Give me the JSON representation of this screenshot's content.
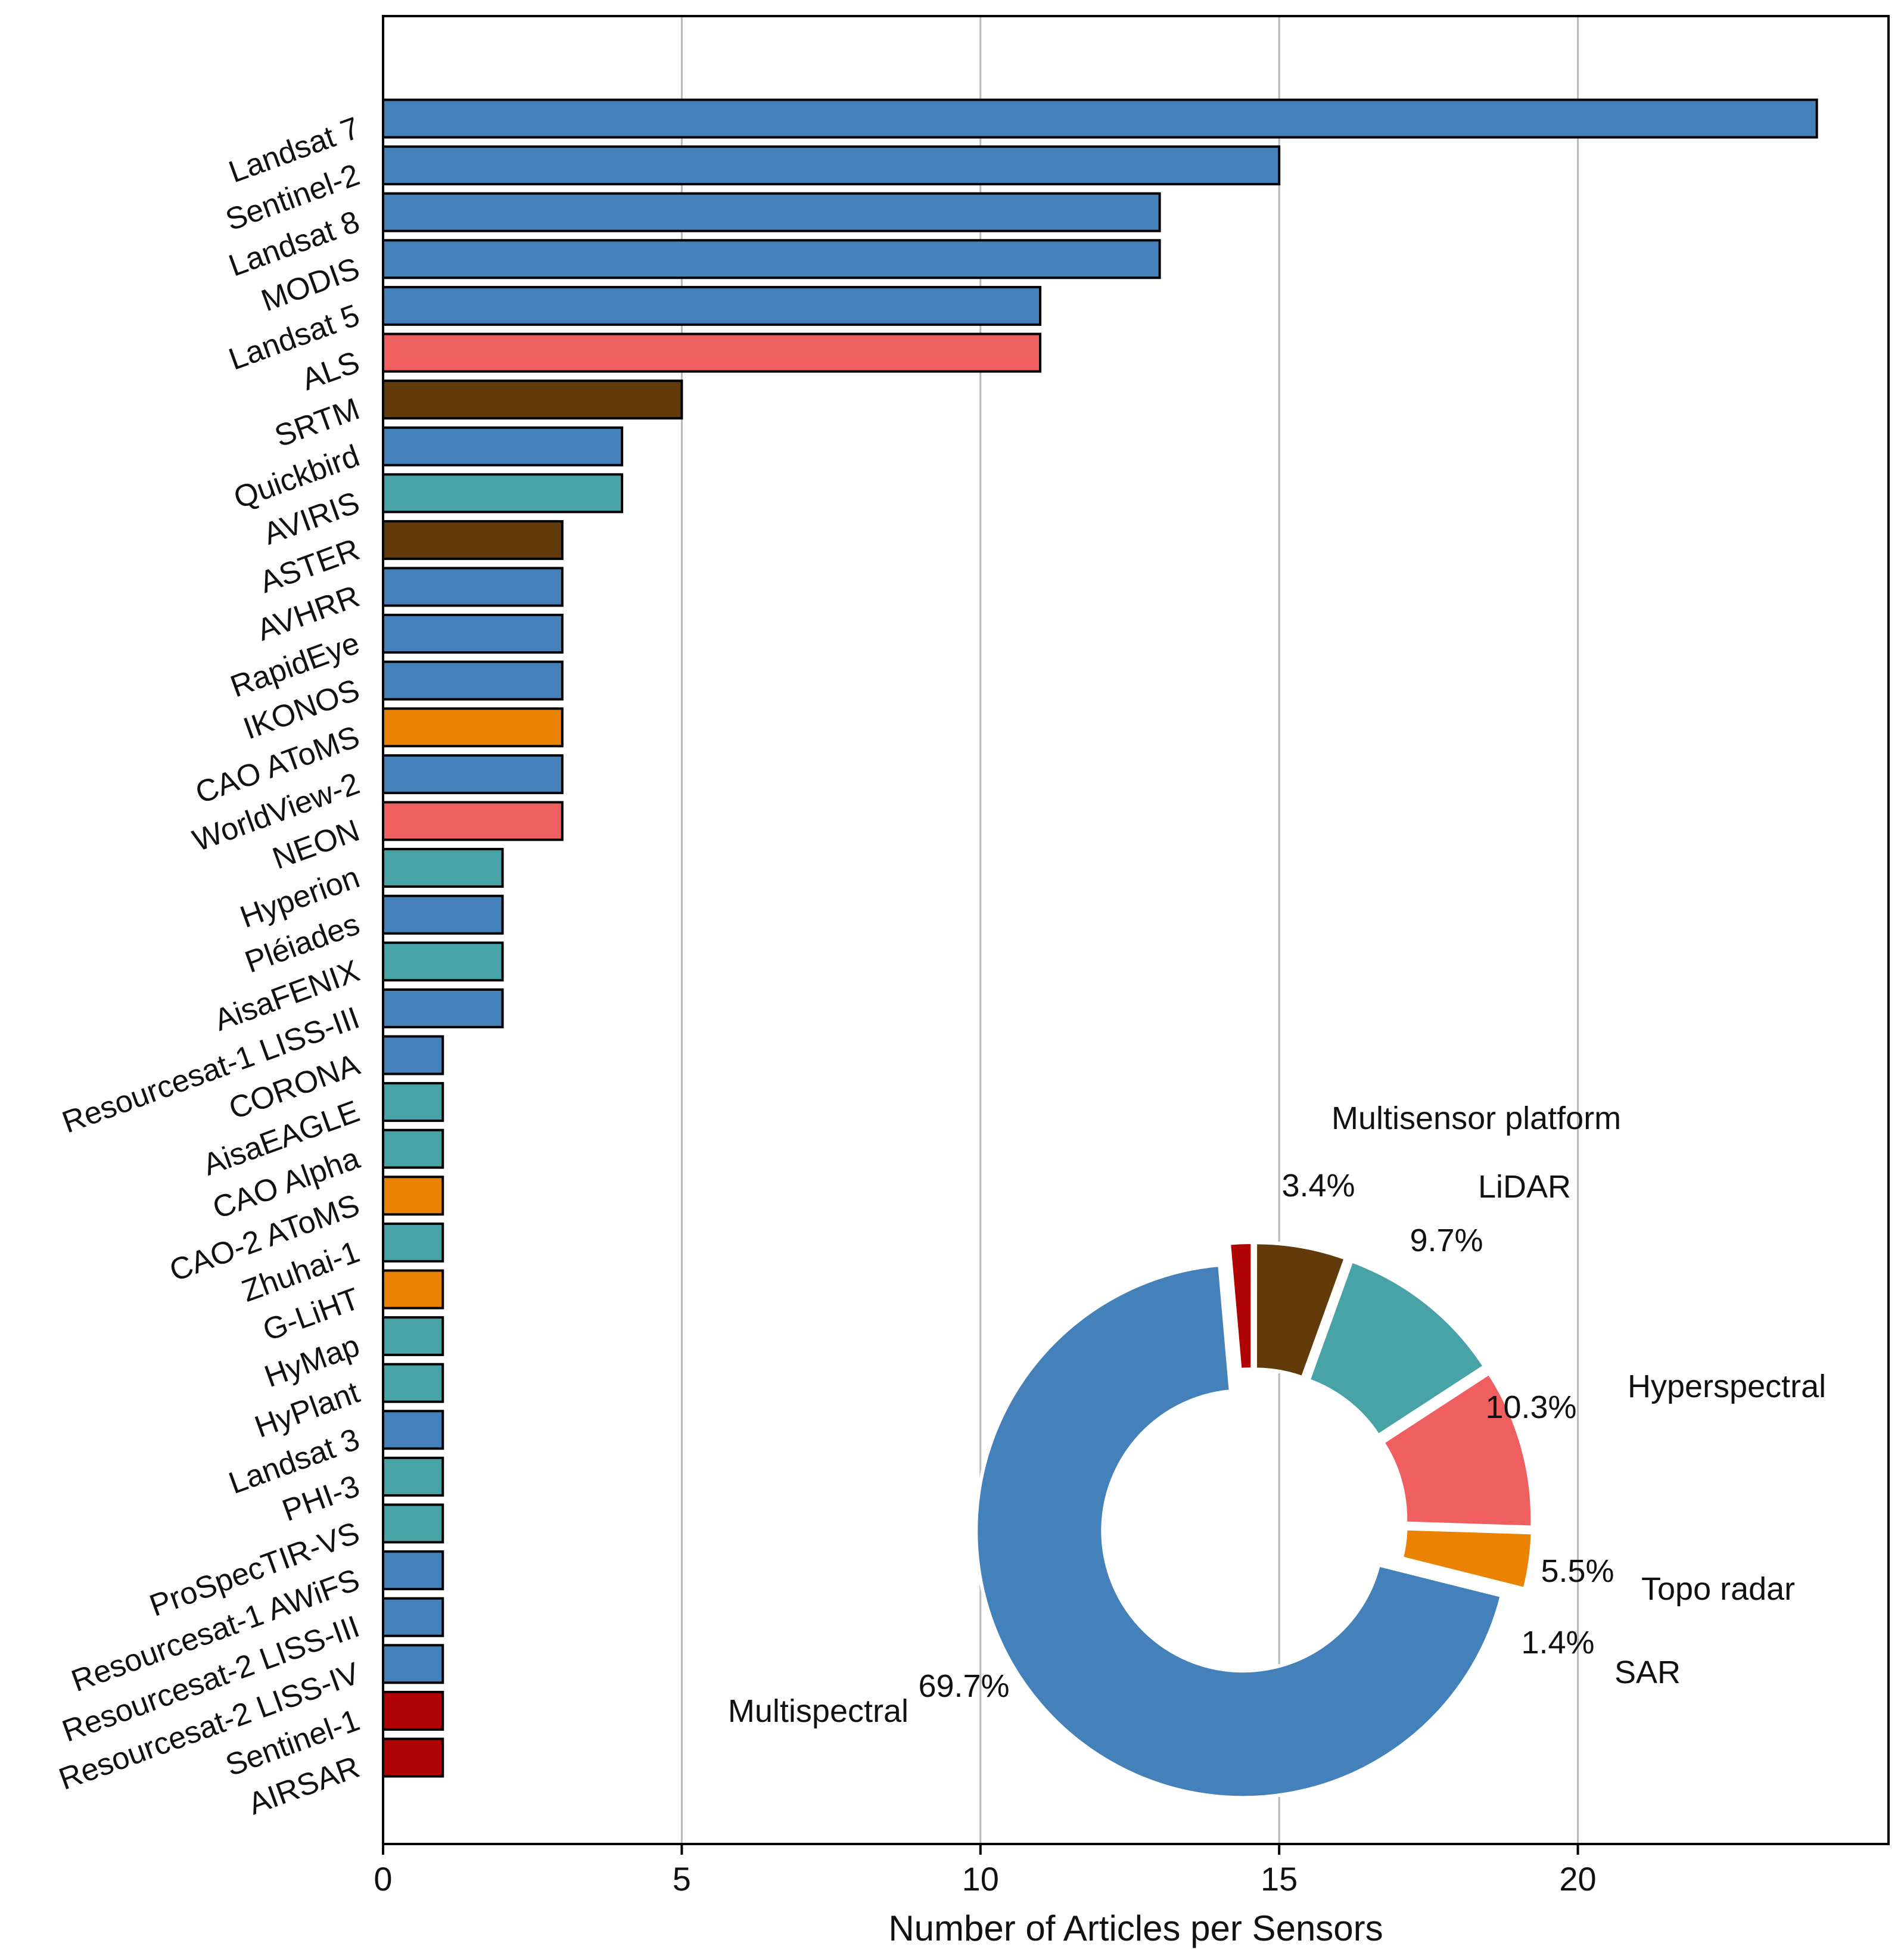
{
  "chart_data": [
    {
      "type": "bar",
      "orientation": "horizontal",
      "title": "",
      "xlabel": "Number of Articles per Sensors",
      "ylabel": "",
      "xlim": [
        0,
        25.2
      ],
      "xticks": [
        0,
        5,
        10,
        15,
        20
      ],
      "grid": "vertical",
      "sensor_type_colors": {
        "Multispectral": "#4480BA",
        "LiDAR": "#EF5F5F",
        "Topo radar": "#633A09",
        "Hyperspectral": "#47A3A5",
        "Multisensor platform": "#EB8302",
        "SAR": "#B00404"
      },
      "bars": [
        {
          "label": "Landsat 7",
          "value": 24,
          "type": "Multispectral"
        },
        {
          "label": "Sentinel-2",
          "value": 15,
          "type": "Multispectral"
        },
        {
          "label": "Landsat 8",
          "value": 13,
          "type": "Multispectral"
        },
        {
          "label": "MODIS",
          "value": 13,
          "type": "Multispectral"
        },
        {
          "label": "Landsat 5",
          "value": 11,
          "type": "Multispectral"
        },
        {
          "label": "ALS",
          "value": 11,
          "type": "LiDAR"
        },
        {
          "label": "SRTM",
          "value": 5,
          "type": "Topo radar"
        },
        {
          "label": "Quickbird",
          "value": 4,
          "type": "Multispectral"
        },
        {
          "label": "AVIRIS",
          "value": 4,
          "type": "Hyperspectral"
        },
        {
          "label": "ASTER",
          "value": 3,
          "type": "Topo radar"
        },
        {
          "label": "AVHRR",
          "value": 3,
          "type": "Multispectral"
        },
        {
          "label": "RapidEye",
          "value": 3,
          "type": "Multispectral"
        },
        {
          "label": "IKONOS",
          "value": 3,
          "type": "Multispectral"
        },
        {
          "label": "CAO AToMS",
          "value": 3,
          "type": "Multisensor platform"
        },
        {
          "label": "WorldView-2",
          "value": 3,
          "type": "Multispectral"
        },
        {
          "label": "NEON",
          "value": 3,
          "type": "LiDAR"
        },
        {
          "label": "Hyperion",
          "value": 2,
          "type": "Hyperspectral"
        },
        {
          "label": "Pléiades",
          "value": 2,
          "type": "Multispectral"
        },
        {
          "label": "AisaFENIX",
          "value": 2,
          "type": "Hyperspectral"
        },
        {
          "label": "Resourcesat-1 LISS-III",
          "value": 2,
          "type": "Multispectral"
        },
        {
          "label": "CORONA",
          "value": 1,
          "type": "Multispectral"
        },
        {
          "label": "AisaEAGLE",
          "value": 1,
          "type": "Hyperspectral"
        },
        {
          "label": "CAO Alpha",
          "value": 1,
          "type": "Hyperspectral"
        },
        {
          "label": "CAO-2 AToMS",
          "value": 1,
          "type": "Multisensor platform"
        },
        {
          "label": "Zhuhai-1",
          "value": 1,
          "type": "Hyperspectral"
        },
        {
          "label": "G-LiHT",
          "value": 1,
          "type": "Multisensor platform"
        },
        {
          "label": "HyMap",
          "value": 1,
          "type": "Hyperspectral"
        },
        {
          "label": "HyPlant",
          "value": 1,
          "type": "Hyperspectral"
        },
        {
          "label": "Landsat 3",
          "value": 1,
          "type": "Multispectral"
        },
        {
          "label": "PHI-3",
          "value": 1,
          "type": "Hyperspectral"
        },
        {
          "label": "ProSpecTIR-VS",
          "value": 1,
          "type": "Hyperspectral"
        },
        {
          "label": "Resourcesat-1 AWiFS",
          "value": 1,
          "type": "Multispectral"
        },
        {
          "label": "Resourcesat-2 LISS-III",
          "value": 1,
          "type": "Multispectral"
        },
        {
          "label": "Resourcesat-2 LISS-IV",
          "value": 1,
          "type": "Multispectral"
        },
        {
          "label": "Sentinel-1",
          "value": 1,
          "type": "SAR"
        },
        {
          "label": "AIRSAR",
          "value": 1,
          "type": "SAR"
        }
      ]
    },
    {
      "type": "pie",
      "style": "donut",
      "title": "",
      "slices": [
        {
          "label": "Multispectral",
          "value": 69.7,
          "pct_text": "69.7%",
          "color": "#4480BA"
        },
        {
          "label": "Multisensor platform",
          "value": 3.4,
          "pct_text": "3.4%",
          "color": "#EB8302"
        },
        {
          "label": "LiDAR",
          "value": 9.7,
          "pct_text": "9.7%",
          "color": "#EF5F5F"
        },
        {
          "label": "Hyperspectral",
          "value": 10.3,
          "pct_text": "10.3%",
          "color": "#47A3A5"
        },
        {
          "label": "Topo radar",
          "value": 5.5,
          "pct_text": "5.5%",
          "color": "#633A09"
        },
        {
          "label": "SAR",
          "value": 1.4,
          "pct_text": "1.4%",
          "color": "#B00404"
        }
      ]
    }
  ]
}
